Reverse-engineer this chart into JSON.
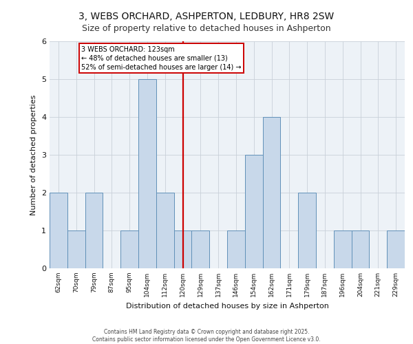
{
  "title_line1": "3, WEBS ORCHARD, ASHPERTON, LEDBURY, HR8 2SW",
  "title_line2": "Size of property relative to detached houses in Ashperton",
  "xlabel": "Distribution of detached houses by size in Ashperton",
  "ylabel": "Number of detached properties",
  "categories": [
    "62sqm",
    "70sqm",
    "79sqm",
    "87sqm",
    "95sqm",
    "104sqm",
    "112sqm",
    "120sqm",
    "129sqm",
    "137sqm",
    "146sqm",
    "154sqm",
    "162sqm",
    "171sqm",
    "179sqm",
    "187sqm",
    "196sqm",
    "204sqm",
    "221sqm",
    "229sqm"
  ],
  "values": [
    2,
    1,
    2,
    0,
    1,
    5,
    2,
    1,
    1,
    0,
    1,
    3,
    4,
    0,
    2,
    0,
    1,
    1,
    0,
    1
  ],
  "bar_color": "#c8d8ea",
  "bar_edge_color": "#6090b8",
  "highlight_index": 7,
  "highlight_line_color": "#cc0000",
  "ylim": [
    0,
    6
  ],
  "yticks": [
    0,
    1,
    2,
    3,
    4,
    5,
    6
  ],
  "annotation_text": "3 WEBS ORCHARD: 123sqm\n← 48% of detached houses are smaller (13)\n52% of semi-detached houses are larger (14) →",
  "annotation_box_color": "#ffffff",
  "annotation_box_edge_color": "#cc0000",
  "footer_text": "Contains HM Land Registry data © Crown copyright and database right 2025.\nContains public sector information licensed under the Open Government Licence v3.0.",
  "bg_color": "#edf2f7",
  "grid_color": "#c8d0d8",
  "title1_fontsize": 10,
  "title2_fontsize": 9,
  "ylabel_fontsize": 8,
  "xlabel_fontsize": 8,
  "tick_fontsize": 6.5,
  "annot_fontsize": 7,
  "footer_fontsize": 5.5
}
